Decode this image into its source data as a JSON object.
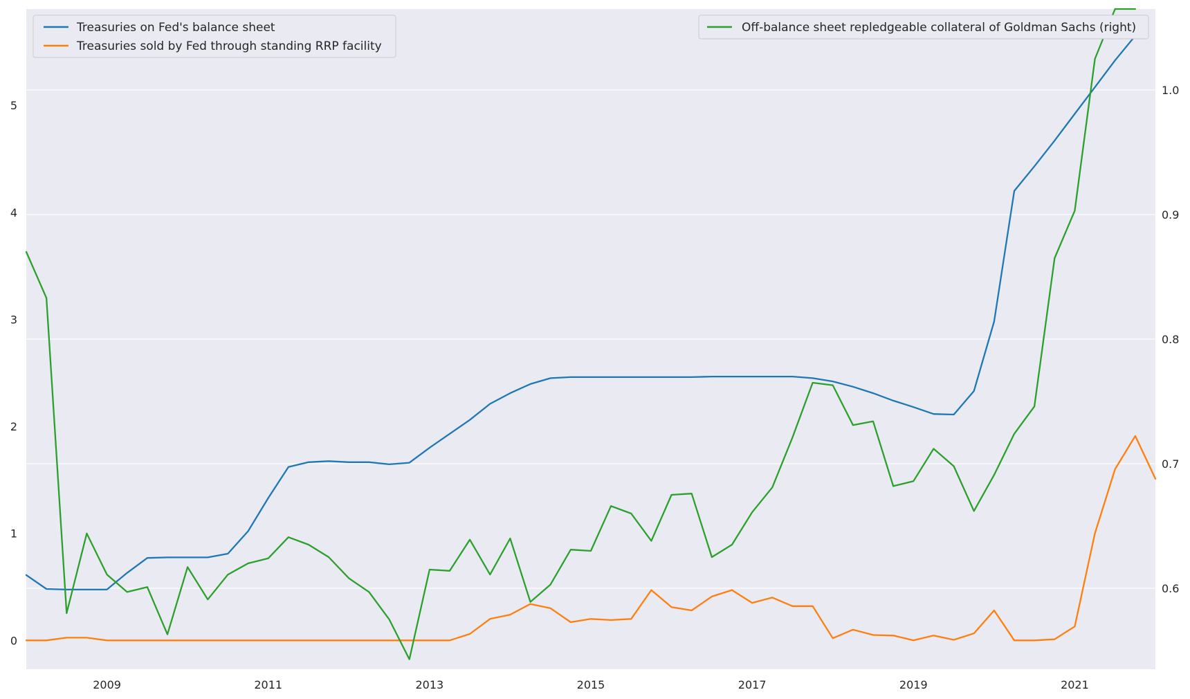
{
  "chart_data": {
    "type": "line",
    "title": "",
    "xlabel": "",
    "ylabel": "",
    "grid": true,
    "x_ticks": [
      "2009",
      "2011",
      "2013",
      "2015",
      "2017",
      "2019",
      "2021"
    ],
    "x_tick_values": [
      2009.0,
      2011.0,
      2013.0,
      2015.0,
      2017.0,
      2019.0,
      2021.0
    ],
    "xlim": [
      2008.0,
      2022.0
    ],
    "left_axis": {
      "ylim": [
        -0.27,
        5.9
      ],
      "ticks": [
        "0",
        "1",
        "2",
        "3",
        "4",
        "5"
      ],
      "tick_values": [
        0,
        1,
        2,
        3,
        4,
        5
      ]
    },
    "right_axis": {
      "ylim": [
        0.535,
        1.065
      ],
      "ticks": [
        "0.6",
        "0.7",
        "0.8",
        "0.9",
        "1.0"
      ],
      "tick_values": [
        0.6,
        0.7,
        0.8,
        0.9,
        1.0
      ]
    },
    "legend_left": {
      "placement": "top-left",
      "entries": [
        "Treasuries on Fed's balance sheet",
        "Treasuries sold by Fed through standing RRP facility"
      ]
    },
    "legend_right": {
      "placement": "top-right",
      "entries": [
        "Off-balance sheet repledgeable collateral of Goldman Sachs (right)"
      ]
    },
    "series": [
      {
        "name": "Treasuries on Fed's balance sheet",
        "axis": "left",
        "color": "#1f77b4",
        "x": [
          2008.0,
          2008.25,
          2008.5,
          2008.75,
          2009.0,
          2009.25,
          2009.5,
          2009.75,
          2010.0,
          2010.25,
          2010.5,
          2010.75,
          2011.0,
          2011.25,
          2011.5,
          2011.75,
          2012.0,
          2012.25,
          2012.5,
          2012.75,
          2013.0,
          2013.25,
          2013.5,
          2013.75,
          2014.0,
          2014.25,
          2014.5,
          2014.75,
          2015.0,
          2015.25,
          2015.5,
          2015.75,
          2016.0,
          2016.25,
          2016.5,
          2016.75,
          2017.0,
          2017.25,
          2017.5,
          2017.75,
          2018.0,
          2018.25,
          2018.5,
          2018.75,
          2019.0,
          2019.25,
          2019.5,
          2019.75,
          2020.0,
          2020.25,
          2020.5,
          2020.75,
          2021.0,
          2021.25,
          2021.5,
          2021.75
        ],
        "values": [
          0.61,
          0.48,
          0.475,
          0.475,
          0.475,
          0.63,
          0.77,
          0.775,
          0.775,
          0.775,
          0.81,
          1.02,
          1.33,
          1.62,
          1.665,
          1.675,
          1.665,
          1.665,
          1.645,
          1.66,
          1.8,
          1.93,
          2.06,
          2.21,
          2.31,
          2.395,
          2.45,
          2.46,
          2.46,
          2.46,
          2.46,
          2.46,
          2.46,
          2.46,
          2.465,
          2.465,
          2.465,
          2.465,
          2.465,
          2.45,
          2.42,
          2.37,
          2.31,
          2.24,
          2.18,
          2.115,
          2.11,
          2.33,
          2.98,
          4.2,
          4.43,
          4.67,
          4.92,
          5.17,
          5.42,
          5.65
        ]
      },
      {
        "name": "Treasuries sold by Fed through standing RRP facility",
        "axis": "left",
        "color": "#ff7f0e",
        "x": [
          2008.0,
          2008.25,
          2008.5,
          2008.75,
          2009.0,
          2009.25,
          2009.5,
          2009.75,
          2010.0,
          2010.25,
          2010.5,
          2010.75,
          2011.0,
          2011.25,
          2011.5,
          2011.75,
          2012.0,
          2012.25,
          2012.5,
          2012.75,
          2013.0,
          2013.25,
          2013.5,
          2013.75,
          2014.0,
          2014.25,
          2014.5,
          2014.75,
          2015.0,
          2015.25,
          2015.5,
          2015.75,
          2016.0,
          2016.25,
          2016.5,
          2016.75,
          2017.0,
          2017.25,
          2017.5,
          2017.75,
          2018.0,
          2018.25,
          2018.5,
          2018.75,
          2019.0,
          2019.25,
          2019.5,
          2019.75,
          2020.0,
          2020.25,
          2020.5,
          2020.75,
          2021.0,
          2021.25,
          2021.5,
          2021.75,
          2022.0
        ],
        "values": [
          0.0,
          0.0,
          0.025,
          0.025,
          0.0,
          0.0,
          0.0,
          0.0,
          0.0,
          0.0,
          0.0,
          0.0,
          0.0,
          0.0,
          0.0,
          0.0,
          0.0,
          0.0,
          0.0,
          0.0,
          0.0,
          0.0,
          0.06,
          0.2,
          0.24,
          0.34,
          0.3,
          0.17,
          0.2,
          0.19,
          0.2,
          0.47,
          0.31,
          0.28,
          0.41,
          0.47,
          0.35,
          0.4,
          0.32,
          0.32,
          0.02,
          0.1,
          0.05,
          0.045,
          0.0,
          0.045,
          0.005,
          0.065,
          0.28,
          0.0,
          0.0,
          0.01,
          0.13,
          1.0,
          1.6,
          1.91,
          1.51
        ]
      },
      {
        "name": "Off-balance sheet repledgeable collateral of Goldman Sachs (right)",
        "axis": "right",
        "color": "#2ca02c",
        "x": [
          2008.0,
          2008.25,
          2008.5,
          2008.75,
          2009.0,
          2009.25,
          2009.5,
          2009.75,
          2010.0,
          2010.25,
          2010.5,
          2010.75,
          2011.0,
          2011.25,
          2011.5,
          2011.75,
          2012.0,
          2012.25,
          2012.5,
          2012.75,
          2013.0,
          2013.25,
          2013.5,
          2013.75,
          2014.0,
          2014.25,
          2014.5,
          2014.75,
          2015.0,
          2015.25,
          2015.5,
          2015.75,
          2016.0,
          2016.25,
          2016.5,
          2016.75,
          2017.0,
          2017.25,
          2017.5,
          2017.75,
          2018.0,
          2018.25,
          2018.5,
          2018.75,
          2019.0,
          2019.25,
          2019.5,
          2019.75,
          2020.0,
          2020.25,
          2020.5,
          2020.75,
          2021.0,
          2021.25,
          2021.5,
          2021.75
        ],
        "values": [
          0.87,
          0.833,
          0.58,
          0.644,
          0.611,
          0.597,
          0.601,
          0.563,
          0.617,
          0.591,
          0.611,
          0.62,
          0.624,
          0.641,
          0.635,
          0.625,
          0.608,
          0.597,
          0.575,
          0.543,
          0.615,
          0.614,
          0.639,
          0.611,
          0.64,
          0.589,
          0.603,
          0.631,
          0.63,
          0.666,
          0.66,
          0.638,
          0.675,
          0.676,
          0.625,
          0.635,
          0.661,
          0.681,
          0.721,
          0.765,
          0.763,
          0.731,
          0.734,
          0.682,
          0.686,
          0.712,
          0.698,
          0.662,
          0.691,
          0.724,
          0.746,
          0.865,
          0.903,
          1.025,
          1.065,
          1.065
        ]
      }
    ]
  }
}
